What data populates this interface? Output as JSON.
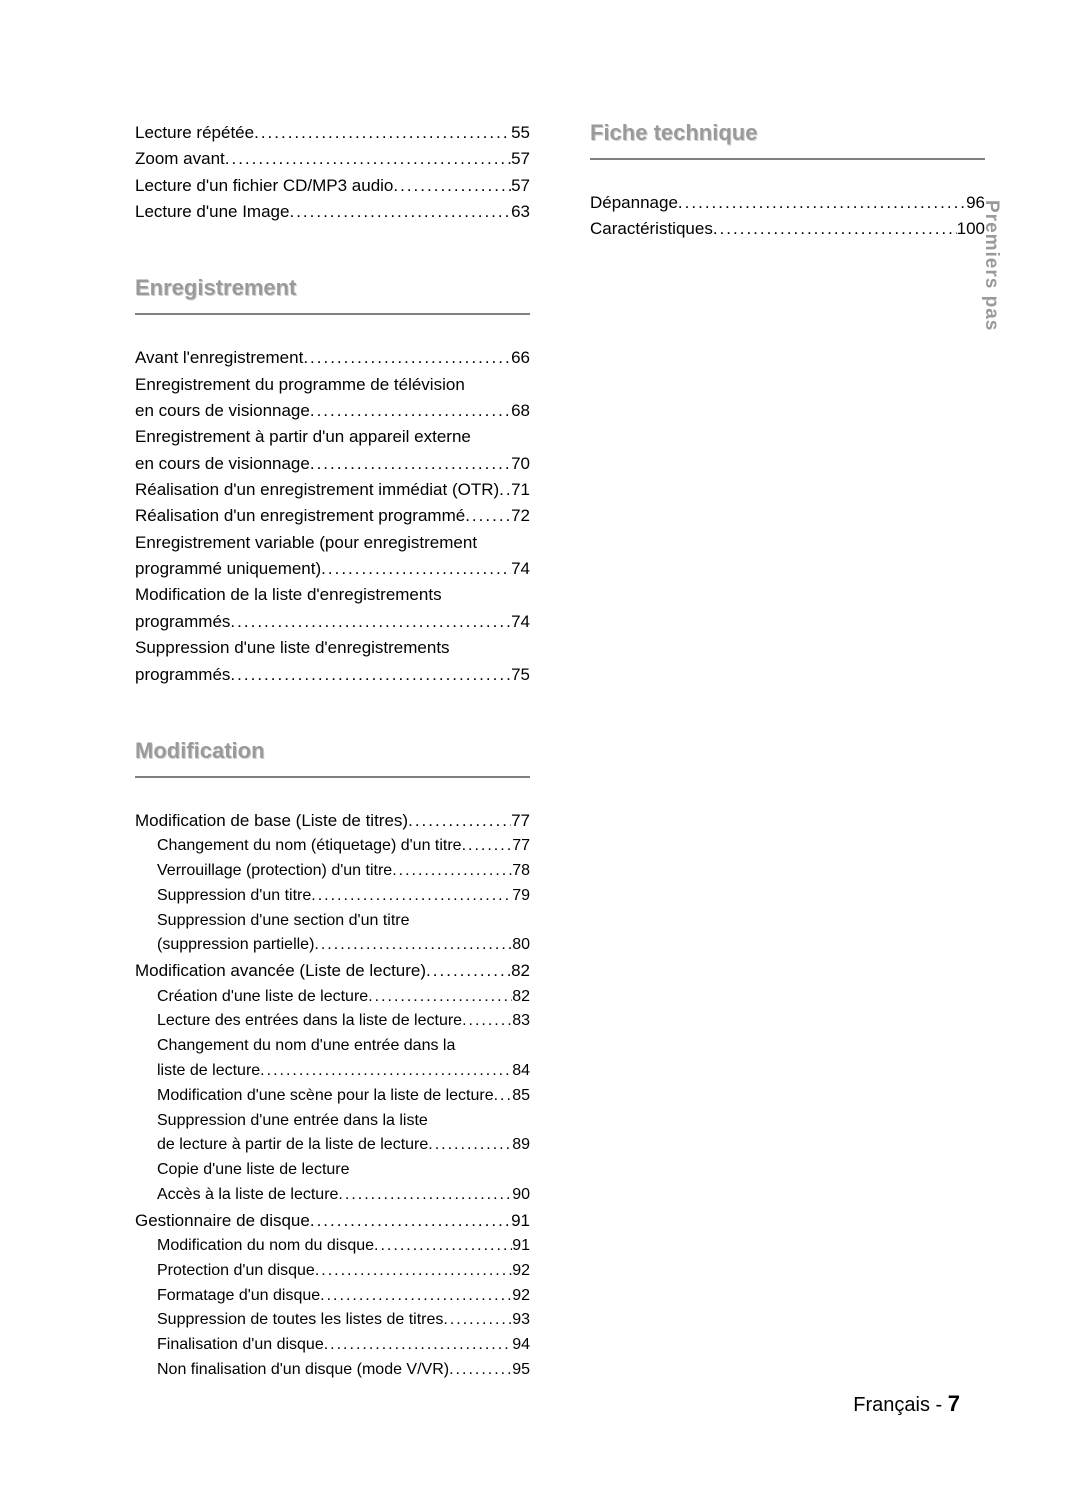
{
  "sideTab": "Premiers pas",
  "footer": {
    "lang": "Français",
    "sep": " - ",
    "page": "7"
  },
  "firstBlock": {
    "items": [
      {
        "label": "Lecture répétée",
        "page": "55"
      },
      {
        "label": "Zoom avant",
        "page": "57"
      },
      {
        "label": "Lecture d'un fichier CD/MP3 audio",
        "page": "57"
      },
      {
        "label": "Lecture d'une Image",
        "page": "63"
      }
    ]
  },
  "sections": [
    {
      "heading": "Enregistrement",
      "items": [
        {
          "label": "Avant l'enregistrement",
          "page": "66"
        },
        {
          "cont": "Enregistrement du programme de télévision"
        },
        {
          "label": "en cours de visionnage",
          "page": "68"
        },
        {
          "cont": "Enregistrement à partir d'un appareil externe"
        },
        {
          "label": "en cours de visionnage",
          "page": "70"
        },
        {
          "label": "Réalisation d'un enregistrement immédiat (OTR)",
          "page": "71"
        },
        {
          "label": "Réalisation d'un enregistrement programmé",
          "page": "72"
        },
        {
          "cont": "Enregistrement variable (pour enregistrement"
        },
        {
          "label": "programmé uniquement)",
          "page": "74"
        },
        {
          "cont": "Modification de la liste d'enregistrements"
        },
        {
          "label": "programmés",
          "page": "74"
        },
        {
          "cont": "Suppression d'une liste d'enregistrements"
        },
        {
          "label": "programmés",
          "page": "75"
        }
      ]
    },
    {
      "heading": "Modification",
      "items": [
        {
          "label": "Modification de base (Liste de titres)",
          "page": "77"
        },
        {
          "label": "Changement du nom (étiquetage) d'un titre",
          "page": "77",
          "sub": true
        },
        {
          "label": "Verrouillage (protection) d'un titre",
          "page": "78",
          "sub": true
        },
        {
          "label": "Suppression d'un titre",
          "page": "79",
          "sub": true
        },
        {
          "cont": "Suppression d'une section d'un titre",
          "sub": true
        },
        {
          "label": "(suppression partielle)",
          "page": "80",
          "sub": true
        },
        {
          "label": "Modification avancée (Liste de lecture)",
          "page": "82"
        },
        {
          "label": "Création d'une liste de lecture",
          "page": "82",
          "sub": true
        },
        {
          "label": "Lecture des entrées dans la liste de lecture",
          "page": "83",
          "sub": true
        },
        {
          "cont": "Changement du nom d'une entrée dans la",
          "sub": true
        },
        {
          "label": "liste de lecture",
          "page": "84",
          "sub": true
        },
        {
          "label": "Modification d'une scène pour la liste de lecture",
          "page": "85",
          "sub": true
        },
        {
          "cont": "Suppression d'une entrée dans la liste",
          "sub": true
        },
        {
          "label": "de lecture à partir de la liste de lecture",
          "page": "89",
          "sub": true
        },
        {
          "cont": "Copie d'une liste de lecture",
          "sub": true
        },
        {
          "label": "Accès à la liste de lecture",
          "page": "90",
          "sub": true
        },
        {
          "label": "Gestionnaire de disque",
          "page": "91"
        },
        {
          "label": "Modification du nom du disque",
          "page": "91",
          "sub": true
        },
        {
          "label": "Protection d'un disque",
          "page": "92",
          "sub": true
        },
        {
          "label": "Formatage d'un disque",
          "page": "92",
          "sub": true
        },
        {
          "label": "Suppression de toutes les listes de titres",
          "page": "93",
          "sub": true
        },
        {
          "label": "Finalisation d'un disque",
          "page": "94",
          "sub": true
        },
        {
          "label": "Non finalisation d'un disque (mode V/VR)",
          "page": "95",
          "sub": true
        }
      ]
    }
  ],
  "rightSections": [
    {
      "heading": "Fiche technique",
      "items": [
        {
          "label": "Dépannage",
          "page": "96"
        },
        {
          "label": "Caractéristiques",
          "page": "100"
        }
      ]
    }
  ]
}
